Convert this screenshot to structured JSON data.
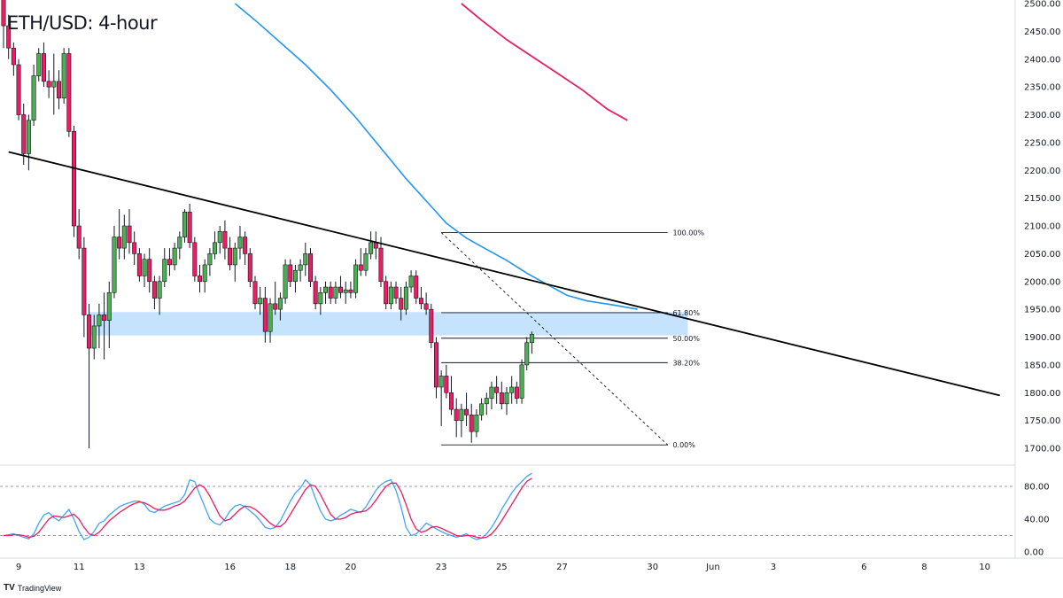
{
  "title": "ETH/USD: 4-hour",
  "brand": {
    "logo": "TV",
    "name": "TradingView"
  },
  "colors": {
    "up": "#4caf50",
    "down": "#e91e63",
    "ma_blue": "#2196f3",
    "ma_pink": "#e91e63",
    "zone": "#bbdefb",
    "trend": "#000000",
    "stoch_k": "#42a5f5",
    "stoch_d": "#e91e63"
  },
  "chart_data": {
    "type": "candlestick",
    "price_axis": {
      "min": 1700,
      "max": 2500,
      "ticks": [
        "2500.00",
        "2450.00",
        "2400.00",
        "2350.00",
        "2300.00",
        "2250.00",
        "2200.00",
        "2150.00",
        "2100.00",
        "2050.00",
        "2000.00",
        "1950.00",
        "1900.00",
        "1850.00",
        "1800.00",
        "1750.00",
        "1700.00"
      ]
    },
    "x_axis": {
      "ticks": [
        {
          "label": "9",
          "bar": 3
        },
        {
          "label": "11",
          "bar": 15
        },
        {
          "label": "13",
          "bar": 27
        },
        {
          "label": "16",
          "bar": 45
        },
        {
          "label": "18",
          "bar": 57
        },
        {
          "label": "20",
          "bar": 69
        },
        {
          "label": "23",
          "bar": 87
        },
        {
          "label": "25",
          "bar": 99
        },
        {
          "label": "27",
          "bar": 111
        },
        {
          "label": "30",
          "bar": 129
        },
        {
          "label": "Jun",
          "bar": 141
        },
        {
          "label": "3",
          "bar": 153
        },
        {
          "label": "6",
          "bar": 171
        },
        {
          "label": "8",
          "bar": 183
        },
        {
          "label": "10",
          "bar": 195
        }
      ]
    },
    "candles": [
      [
        2510,
        2520,
        2420,
        2460
      ],
      [
        2460,
        2480,
        2400,
        2420
      ],
      [
        2420,
        2430,
        2370,
        2390
      ],
      [
        2390,
        2400,
        2290,
        2300
      ],
      [
        2300,
        2320,
        2210,
        2230
      ],
      [
        2230,
        2300,
        2200,
        2290
      ],
      [
        2290,
        2390,
        2280,
        2370
      ],
      [
        2370,
        2420,
        2360,
        2410
      ],
      [
        2410,
        2430,
        2350,
        2360
      ],
      [
        2360,
        2380,
        2330,
        2350
      ],
      [
        2350,
        2410,
        2300,
        2360
      ],
      [
        2360,
        2380,
        2310,
        2330
      ],
      [
        2330,
        2420,
        2320,
        2410
      ],
      [
        2410,
        2420,
        2260,
        2270
      ],
      [
        2270,
        2280,
        2080,
        2100
      ],
      [
        2100,
        2130,
        2040,
        2060
      ],
      [
        2060,
        2080,
        1900,
        1940
      ],
      [
        1940,
        1960,
        1700,
        1880
      ],
      [
        1880,
        1940,
        1860,
        1920
      ],
      [
        1920,
        1960,
        1880,
        1940
      ],
      [
        1940,
        1980,
        1860,
        1930
      ],
      [
        1930,
        2000,
        1880,
        1980
      ],
      [
        1980,
        2100,
        1970,
        2080
      ],
      [
        2080,
        2130,
        2040,
        2060
      ],
      [
        2060,
        2120,
        2040,
        2100
      ],
      [
        2100,
        2130,
        2050,
        2070
      ],
      [
        2070,
        2090,
        2030,
        2050
      ],
      [
        2050,
        2060,
        2000,
        2010
      ],
      [
        2010,
        2050,
        1990,
        2040
      ],
      [
        2040,
        2060,
        1980,
        2000
      ],
      [
        2000,
        2010,
        1950,
        1970
      ],
      [
        1970,
        2010,
        1940,
        2000
      ],
      [
        2000,
        2060,
        1990,
        2040
      ],
      [
        2040,
        2060,
        2010,
        2030
      ],
      [
        2030,
        2070,
        2020,
        2060
      ],
      [
        2060,
        2090,
        2040,
        2080
      ],
      [
        2080,
        2130,
        2070,
        2125
      ],
      [
        2125,
        2140,
        2060,
        2070
      ],
      [
        2070,
        2080,
        2000,
        2010
      ],
      [
        2010,
        2030,
        1980,
        2000
      ],
      [
        2000,
        2040,
        1980,
        2030
      ],
      [
        2030,
        2060,
        2010,
        2050
      ],
      [
        2050,
        2090,
        2040,
        2070
      ],
      [
        2070,
        2100,
        2050,
        2090
      ],
      [
        2090,
        2110,
        2040,
        2060
      ],
      [
        2060,
        2080,
        2020,
        2030
      ],
      [
        2030,
        2070,
        2000,
        2060
      ],
      [
        2060,
        2100,
        2040,
        2080
      ],
      [
        2080,
        2090,
        2030,
        2050
      ],
      [
        2050,
        2060,
        1990,
        2000
      ],
      [
        2000,
        2010,
        1950,
        1960
      ],
      [
        1960,
        1990,
        1940,
        1970
      ],
      [
        1970,
        1990,
        1890,
        1910
      ],
      [
        1910,
        1970,
        1890,
        1960
      ],
      [
        1960,
        2000,
        1940,
        1950
      ],
      [
        1950,
        1980,
        1930,
        1970
      ],
      [
        1970,
        2040,
        1960,
        2030
      ],
      [
        2030,
        2040,
        1990,
        2000
      ],
      [
        2000,
        2030,
        1980,
        2020
      ],
      [
        2020,
        2040,
        2000,
        2030
      ],
      [
        2030,
        2070,
        2010,
        2050
      ],
      [
        2050,
        2060,
        1990,
        2000
      ],
      [
        2000,
        2010,
        1950,
        1960
      ],
      [
        1960,
        1990,
        1940,
        1980
      ],
      [
        1980,
        2000,
        1960,
        1990
      ],
      [
        1990,
        2000,
        1960,
        1970
      ],
      [
        1970,
        2000,
        1960,
        1990
      ],
      [
        1990,
        2010,
        1970,
        1980
      ],
      [
        1980,
        2000,
        1960,
        1985
      ],
      [
        1985,
        2000,
        1970,
        1980
      ],
      [
        1980,
        2040,
        1970,
        2030
      ],
      [
        2030,
        2060,
        2010,
        2020
      ],
      [
        2020,
        2060,
        2010,
        2050
      ],
      [
        2050,
        2090,
        2040,
        2070
      ],
      [
        2070,
        2090,
        2040,
        2060
      ],
      [
        2060,
        2080,
        1990,
        2000
      ],
      [
        2000,
        2010,
        1950,
        1960
      ],
      [
        1960,
        2000,
        1950,
        1990
      ],
      [
        1990,
        2000,
        1960,
        1970
      ],
      [
        1970,
        1990,
        1930,
        1950
      ],
      [
        1950,
        2000,
        1940,
        1990
      ],
      [
        1990,
        2020,
        1980,
        2010
      ],
      [
        2010,
        2020,
        1960,
        1970
      ],
      [
        1970,
        1990,
        1950,
        1960
      ],
      [
        1960,
        1980,
        1940,
        1950
      ],
      [
        1950,
        1960,
        1880,
        1890
      ],
      [
        1890,
        1900,
        1790,
        1810
      ],
      [
        1810,
        1840,
        1740,
        1830
      ],
      [
        1830,
        1850,
        1790,
        1800
      ],
      [
        1800,
        1830,
        1760,
        1770
      ],
      [
        1770,
        1790,
        1720,
        1750
      ],
      [
        1750,
        1780,
        1720,
        1770
      ],
      [
        1770,
        1800,
        1740,
        1760
      ],
      [
        1760,
        1780,
        1710,
        1730
      ],
      [
        1730,
        1770,
        1720,
        1760
      ],
      [
        1760,
        1790,
        1750,
        1780
      ],
      [
        1780,
        1800,
        1760,
        1790
      ],
      [
        1790,
        1820,
        1770,
        1810
      ],
      [
        1810,
        1830,
        1780,
        1800
      ],
      [
        1800,
        1820,
        1770,
        1780
      ],
      [
        1780,
        1810,
        1760,
        1800
      ],
      [
        1800,
        1830,
        1780,
        1810
      ],
      [
        1810,
        1820,
        1780,
        1790
      ],
      [
        1790,
        1860,
        1780,
        1850
      ],
      [
        1850,
        1900,
        1840,
        1890
      ],
      [
        1890,
        1910,
        1870,
        1905
      ]
    ],
    "stochastic": {
      "axis": {
        "min": 0,
        "max": 100,
        "ticks": [
          "80.00",
          "40.00",
          "0.00"
        ],
        "bands": [
          80,
          20
        ]
      },
      "k": [
        20,
        21,
        22,
        20,
        18,
        16,
        22,
        35,
        45,
        48,
        42,
        38,
        45,
        52,
        40,
        25,
        15,
        18,
        25,
        35,
        38,
        45,
        50,
        55,
        58,
        60,
        62,
        62,
        58,
        50,
        48,
        52,
        56,
        58,
        60,
        62,
        70,
        88,
        86,
        70,
        55,
        40,
        35,
        33,
        40,
        50,
        56,
        58,
        55,
        50,
        45,
        38,
        30,
        28,
        30,
        38,
        50,
        62,
        72,
        78,
        88,
        82,
        65,
        50,
        40,
        38,
        40,
        45,
        48,
        52,
        50,
        48,
        55,
        65,
        75,
        82,
        86,
        88,
        75,
        55,
        30,
        20,
        22,
        28,
        35,
        32,
        28,
        25,
        22,
        20,
        18,
        20,
        22,
        18,
        15,
        17,
        22,
        30,
        40,
        52,
        62,
        72,
        80,
        86,
        92,
        96
      ],
      "d": [
        20,
        20,
        21,
        21,
        20,
        18,
        19,
        24,
        32,
        40,
        44,
        43,
        42,
        44,
        46,
        40,
        30,
        22,
        20,
        24,
        31,
        38,
        43,
        48,
        52,
        56,
        59,
        61,
        60,
        57,
        53,
        51,
        51,
        53,
        56,
        58,
        62,
        70,
        78,
        82,
        78,
        68,
        56,
        44,
        38,
        40,
        46,
        52,
        56,
        55,
        52,
        47,
        41,
        35,
        31,
        31,
        36,
        46,
        56,
        66,
        76,
        82,
        80,
        70,
        58,
        46,
        40,
        40,
        42,
        46,
        48,
        49,
        50,
        55,
        63,
        72,
        80,
        84,
        84,
        74,
        58,
        40,
        28,
        24,
        26,
        30,
        31,
        29,
        26,
        23,
        20,
        19,
        20,
        20,
        18,
        17,
        18,
        22,
        29,
        38,
        48,
        58,
        68,
        78,
        86,
        90
      ]
    },
    "fibonacci": [
      {
        "label": "100.00%",
        "price": 2088
      },
      {
        "label": "61.80%",
        "price": 1944
      },
      {
        "label": "50.00%",
        "price": 1898
      },
      {
        "label": "38.20%",
        "price": 1854
      },
      {
        "label": "0.00%",
        "price": 1706
      }
    ],
    "fib_range": {
      "start_bar": 87,
      "end_bar": 132,
      "label_bar": 133
    },
    "fib_diagonal": {
      "from": [
        87,
        2088
      ],
      "to": [
        132,
        1706
      ]
    },
    "trendline": {
      "from": [
        1,
        2233
      ],
      "to": [
        198,
        1795
      ]
    },
    "support_zone": {
      "from_bar": 17,
      "to_bar": 136,
      "top": 1945,
      "bottom": 1903
    },
    "ma_blue": [
      [
        46,
        2500
      ],
      [
        50,
        2470
      ],
      [
        55,
        2430
      ],
      [
        60,
        2390
      ],
      [
        65,
        2345
      ],
      [
        70,
        2295
      ],
      [
        75,
        2240
      ],
      [
        80,
        2185
      ],
      [
        85,
        2135
      ],
      [
        88,
        2105
      ],
      [
        92,
        2078
      ],
      [
        96,
        2058
      ],
      [
        100,
        2038
      ],
      [
        104,
        2015
      ],
      [
        108,
        1995
      ],
      [
        112,
        1975
      ],
      [
        116,
        1965
      ],
      [
        121,
        1958
      ],
      [
        126,
        1950
      ]
    ],
    "ma_pink": [
      [
        91,
        2500
      ],
      [
        95,
        2470
      ],
      [
        100,
        2435
      ],
      [
        105,
        2405
      ],
      [
        110,
        2375
      ],
      [
        115,
        2345
      ],
      [
        120,
        2310
      ],
      [
        124,
        2290
      ]
    ]
  }
}
